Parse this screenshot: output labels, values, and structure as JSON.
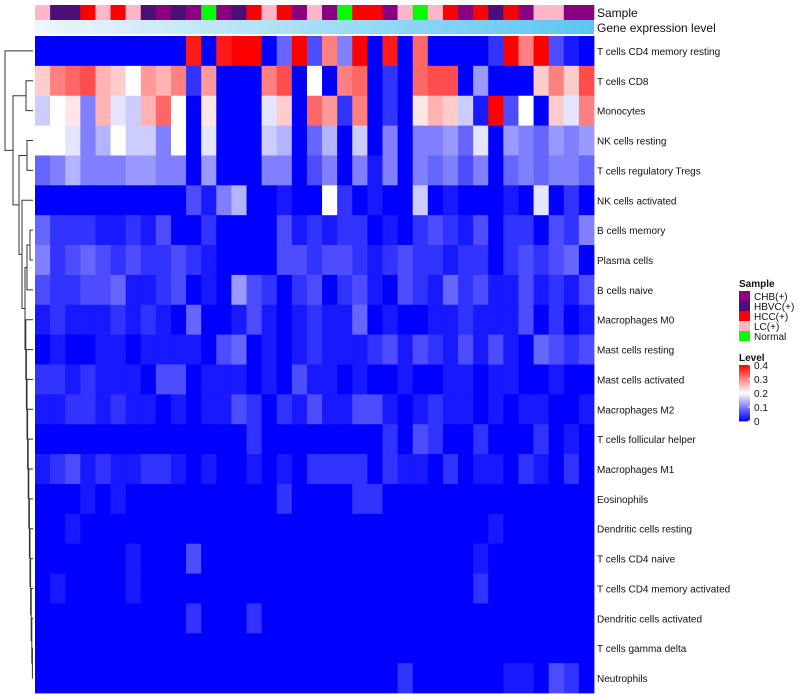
{
  "chart_data": {
    "type": "heatmap",
    "title": "",
    "annotation_rows": [
      {
        "id": "sample",
        "label": "Sample"
      },
      {
        "id": "gene_expression",
        "label": "Gene expression level"
      }
    ],
    "sample_groups": [
      "LC(+)",
      "HBVC(+)",
      "HBVC(+)",
      "HCC(+)",
      "LC(+)",
      "HCC(+)",
      "LC(+)",
      "HBVC(+)",
      "CHB(+)",
      "HBVC(+)",
      "CHB(+)",
      "Normal",
      "CHB(+)",
      "HBVC(+)",
      "HCC(+)",
      "LC(+)",
      "HCC(+)",
      "CHB(+)",
      "LC(+)",
      "CHB(+)",
      "Normal",
      "HCC(+)",
      "HCC(+)",
      "CHB(+)",
      "LC(+)",
      "Normal",
      "LC(+)",
      "HCC(+)",
      "CHB(+)",
      "HCC(+)",
      "HBVC(+)",
      "HCC(+)",
      "CHB(+)",
      "LC(+)",
      "LC(+)",
      "CHB(+)",
      "CHB(+)"
    ],
    "gene_expression_gradient": [
      "#eef6fb",
      "#5bc6f0"
    ],
    "rows": [
      "T cells CD4 memory resting",
      "T cells CD8",
      "Monocytes",
      "NK cells resting",
      "T cells regulatory  Tregs",
      "NK cells activated",
      "B cells memory",
      "Plasma cells",
      "B cells naive",
      "Macrophages M0",
      "Mast cells resting",
      "Mast cells activated",
      "Macrophages M2",
      "T cells follicular helper",
      "Macrophages M1",
      "Eosinophils",
      "Dendritic cells resting",
      "T cells CD4 naive",
      "T cells CD4 memory activated",
      "Dendritic cells activated",
      "T cells gamma delta",
      "Neutrophils"
    ],
    "values": [
      [
        0,
        0,
        0,
        0,
        0,
        0,
        0,
        0,
        0,
        0,
        0.38,
        0,
        0.38,
        0.4,
        0.4,
        0,
        0.08,
        0.4,
        0.06,
        0.3,
        0.1,
        0.4,
        0,
        0.38,
        0,
        0.32,
        0,
        0,
        0,
        0,
        0.04,
        0.4,
        0.3,
        0.4,
        0.06,
        0.02,
        0
      ],
      [
        0.24,
        0.3,
        0.32,
        0.34,
        0.26,
        0.24,
        0.2,
        0.28,
        0.26,
        0.3,
        0.04,
        0.28,
        0,
        0,
        0,
        0.3,
        0.34,
        0,
        0.2,
        0,
        0.3,
        0.32,
        0,
        0.04,
        0,
        0.32,
        0.34,
        0.34,
        0,
        0.12,
        0,
        0,
        0,
        0.24,
        0.3,
        0.24,
        0.34
      ],
      [
        0.16,
        0.2,
        0.22,
        0.1,
        0.26,
        0.18,
        0.16,
        0.26,
        0.32,
        0.2,
        0,
        0.22,
        0,
        0,
        0,
        0.18,
        0.24,
        0,
        0.32,
        0.28,
        0.04,
        0.3,
        0,
        0.04,
        0,
        0.22,
        0.26,
        0.24,
        0.16,
        0.02,
        0.4,
        0.06,
        0.2,
        0,
        0.24,
        0.18,
        0.3
      ],
      [
        0.2,
        0.2,
        0.18,
        0.1,
        0.14,
        0.2,
        0.16,
        0.16,
        0.1,
        0.2,
        0,
        0.18,
        0,
        0,
        0,
        0.16,
        0.14,
        0,
        0.08,
        0.14,
        0,
        0.16,
        0,
        0.1,
        0,
        0.1,
        0.1,
        0.12,
        0.08,
        0.18,
        0,
        0.12,
        0.1,
        0.08,
        0.12,
        0.1,
        0.12
      ],
      [
        0.08,
        0.1,
        0.14,
        0.1,
        0.1,
        0.1,
        0.12,
        0.12,
        0.1,
        0.1,
        0,
        0.12,
        0,
        0,
        0,
        0.1,
        0.1,
        0,
        0.06,
        0.1,
        0,
        0.1,
        0.02,
        0.1,
        0,
        0.1,
        0.08,
        0.1,
        0.06,
        0.1,
        0,
        0.08,
        0.1,
        0.08,
        0.1,
        0.1,
        0.08
      ],
      [
        0,
        0,
        0,
        0,
        0,
        0,
        0,
        0,
        0,
        0,
        0.06,
        0.02,
        0.1,
        0.14,
        0,
        0,
        0.02,
        0,
        0,
        0.2,
        0.04,
        0,
        0.02,
        0,
        0,
        0.16,
        0,
        0.02,
        0,
        0,
        0,
        0.02,
        0,
        0.18,
        0,
        0.04,
        0
      ],
      [
        0.08,
        0.04,
        0.04,
        0.04,
        0.02,
        0.02,
        0.04,
        0.02,
        0.06,
        0,
        0,
        0.04,
        0,
        0,
        0,
        0,
        0.06,
        0.02,
        0.04,
        0.02,
        0.04,
        0.04,
        0,
        0.02,
        0,
        0.04,
        0.06,
        0.04,
        0.02,
        0.06,
        0,
        0.04,
        0.04,
        0,
        0.06,
        0.04,
        0.1
      ],
      [
        0.1,
        0.04,
        0.06,
        0.08,
        0.06,
        0.04,
        0.06,
        0.04,
        0.04,
        0.06,
        0.04,
        0.02,
        0,
        0,
        0,
        0,
        0.06,
        0.06,
        0.04,
        0.06,
        0.06,
        0.04,
        0.02,
        0.04,
        0.06,
        0.04,
        0.04,
        0.02,
        0.04,
        0.04,
        0,
        0.04,
        0.06,
        0.04,
        0.06,
        0.08,
        0
      ],
      [
        0.06,
        0.04,
        0.04,
        0.06,
        0.06,
        0.08,
        0.02,
        0.02,
        0.04,
        0.06,
        0,
        0.02,
        0,
        0.12,
        0.06,
        0.04,
        0,
        0.04,
        0.06,
        0,
        0.04,
        0.06,
        0.02,
        0,
        0.06,
        0.04,
        0.02,
        0.08,
        0.04,
        0.06,
        0.02,
        0.02,
        0.06,
        0.02,
        0.04,
        0.02,
        0.06
      ],
      [
        0.02,
        0.04,
        0.02,
        0.02,
        0.02,
        0.04,
        0.02,
        0.04,
        0.02,
        0,
        0.08,
        0,
        0,
        0.02,
        0.06,
        0.02,
        0,
        0.02,
        0.04,
        0.02,
        0.02,
        0.08,
        0,
        0.02,
        0,
        0,
        0.02,
        0.02,
        0.04,
        0.02,
        0.02,
        0.02,
        0.06,
        0,
        0.04,
        0,
        0.02
      ],
      [
        0,
        0.02,
        0,
        0,
        0.02,
        0.02,
        0,
        0.02,
        0.02,
        0.02,
        0.02,
        0,
        0.06,
        0.08,
        0,
        0.02,
        0,
        0.02,
        0.04,
        0.02,
        0.02,
        0.02,
        0.04,
        0.06,
        0.02,
        0.06,
        0.04,
        0.02,
        0.06,
        0.02,
        0.06,
        0.02,
        0,
        0.08,
        0.06,
        0.04,
        0.06
      ],
      [
        0.04,
        0.04,
        0.02,
        0.04,
        0.02,
        0.02,
        0.02,
        0,
        0.06,
        0.06,
        0,
        0.02,
        0.02,
        0.02,
        0,
        0.02,
        0,
        0.06,
        0.02,
        0.02,
        0,
        0.02,
        0,
        0,
        0.02,
        0,
        0,
        0.02,
        0.02,
        0,
        0.02,
        0.02,
        0,
        0,
        0.02,
        0,
        0
      ],
      [
        0.02,
        0.02,
        0.04,
        0.04,
        0.02,
        0.04,
        0.02,
        0.02,
        0,
        0.02,
        0,
        0.02,
        0.02,
        0.06,
        0.04,
        0,
        0.04,
        0.02,
        0.06,
        0.02,
        0.02,
        0.06,
        0.06,
        0.02,
        0,
        0.02,
        0.04,
        0.02,
        0.02,
        0,
        0.02,
        0,
        0.02,
        0.02,
        0,
        0,
        0.02
      ],
      [
        0,
        0,
        0,
        0,
        0,
        0,
        0,
        0,
        0,
        0,
        0,
        0,
        0,
        0,
        0.04,
        0,
        0,
        0,
        0,
        0,
        0,
        0,
        0,
        0.04,
        0,
        0.06,
        0.04,
        0,
        0,
        0.04,
        0,
        0,
        0,
        0.04,
        0,
        0.02,
        0
      ],
      [
        0.02,
        0.04,
        0.06,
        0.02,
        0.04,
        0.02,
        0.02,
        0.04,
        0.04,
        0.02,
        0,
        0.02,
        0,
        0,
        0.02,
        0,
        0.02,
        0,
        0.04,
        0.04,
        0.04,
        0.04,
        0,
        0.04,
        0.02,
        0.02,
        0,
        0.04,
        0,
        0.02,
        0.02,
        0,
        0.04,
        0.02,
        0,
        0.04,
        0
      ],
      [
        0,
        0,
        0,
        0.02,
        0,
        0.02,
        0,
        0,
        0,
        0,
        0,
        0,
        0,
        0,
        0,
        0,
        0.04,
        0,
        0,
        0,
        0,
        0.04,
        0.04,
        0,
        0,
        0,
        0,
        0,
        0,
        0,
        0,
        0,
        0,
        0,
        0,
        0,
        0
      ],
      [
        0,
        0,
        0.02,
        0,
        0,
        0,
        0,
        0,
        0,
        0,
        0,
        0,
        0,
        0,
        0,
        0,
        0,
        0,
        0,
        0,
        0,
        0,
        0,
        0,
        0,
        0,
        0,
        0,
        0,
        0,
        0.02,
        0,
        0,
        0,
        0,
        0,
        0
      ],
      [
        0,
        0,
        0,
        0,
        0,
        0,
        0.02,
        0,
        0,
        0,
        0.06,
        0,
        0,
        0,
        0,
        0,
        0,
        0,
        0,
        0,
        0,
        0,
        0,
        0,
        0,
        0,
        0,
        0,
        0,
        0.02,
        0,
        0,
        0,
        0,
        0,
        0,
        0
      ],
      [
        0,
        0.02,
        0,
        0,
        0,
        0,
        0.02,
        0,
        0,
        0,
        0,
        0,
        0,
        0,
        0,
        0,
        0,
        0,
        0,
        0,
        0,
        0,
        0,
        0,
        0,
        0,
        0,
        0,
        0,
        0.04,
        0,
        0,
        0,
        0,
        0,
        0,
        0
      ],
      [
        0,
        0,
        0,
        0,
        0,
        0,
        0,
        0,
        0,
        0,
        0.04,
        0,
        0,
        0,
        0.04,
        0,
        0,
        0,
        0,
        0,
        0,
        0,
        0,
        0,
        0,
        0,
        0,
        0,
        0,
        0,
        0,
        0,
        0,
        0,
        0,
        0,
        0
      ],
      [
        0,
        0,
        0,
        0,
        0,
        0,
        0,
        0,
        0,
        0,
        0,
        0,
        0,
        0,
        0,
        0,
        0,
        0,
        0,
        0,
        0,
        0,
        0,
        0,
        0,
        0,
        0,
        0,
        0,
        0,
        0,
        0,
        0,
        0,
        0,
        0,
        0
      ],
      [
        0,
        0,
        0,
        0,
        0,
        0,
        0,
        0,
        0,
        0,
        0,
        0,
        0,
        0,
        0,
        0,
        0,
        0,
        0,
        0,
        0,
        0,
        0,
        0,
        0.04,
        0,
        0,
        0,
        0,
        0,
        0,
        0.02,
        0.02,
        0,
        0.06,
        0.04,
        0
      ]
    ],
    "color_scale": {
      "min": 0,
      "mid": 0.2,
      "max": 0.4,
      "low_color": "#0000ff",
      "mid_color": "#ffffff",
      "high_color": "#ff0000"
    },
    "sample_legend": {
      "title": "Sample",
      "entries": [
        {
          "label": "CHB(+)",
          "color": "#8b0080"
        },
        {
          "label": "HBVC(+)",
          "color": "#4b0f7a"
        },
        {
          "label": "HCC(+)",
          "color": "#ff0000"
        },
        {
          "label": "LC(+)",
          "color": "#ffb6c8"
        },
        {
          "label": "Normal",
          "color": "#00ff00"
        }
      ]
    },
    "level_legend": {
      "title": "Level",
      "ticks": [
        {
          "value": 0.4,
          "label": "0.4"
        },
        {
          "value": 0.3,
          "label": "0.3"
        },
        {
          "value": 0.2,
          "label": "0.2"
        },
        {
          "value": 0.1,
          "label": "0.1"
        },
        {
          "value": 0,
          "label": "0"
        }
      ]
    }
  }
}
